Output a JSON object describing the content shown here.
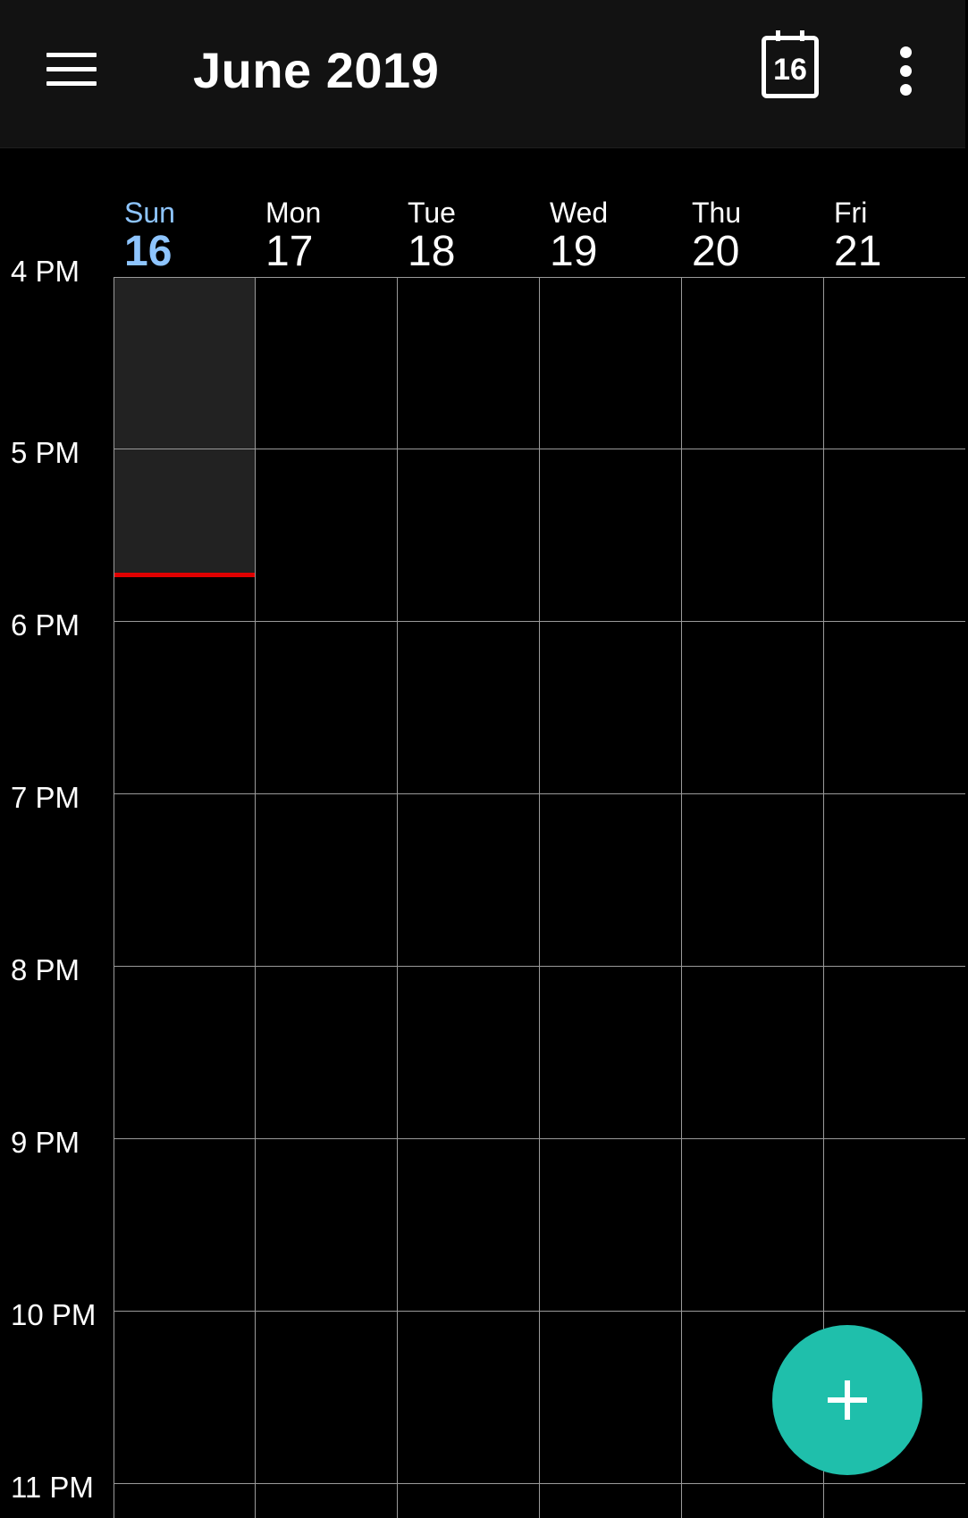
{
  "header": {
    "title": "June 2019",
    "today_icon_number": "16",
    "menu_icon": "hamburger-menu-icon",
    "today_icon": "calendar-today-icon",
    "overflow_icon": "more-vert-icon"
  },
  "days": [
    {
      "name": "Sun",
      "date": "16",
      "is_today": true
    },
    {
      "name": "Mon",
      "date": "17",
      "is_today": false
    },
    {
      "name": "Tue",
      "date": "18",
      "is_today": false
    },
    {
      "name": "Wed",
      "date": "19",
      "is_today": false
    },
    {
      "name": "Thu",
      "date": "20",
      "is_today": false
    },
    {
      "name": "Fri",
      "date": "21",
      "is_today": false
    }
  ],
  "hours": [
    "4 PM",
    "5 PM",
    "6 PM",
    "7 PM",
    "8 PM",
    "9 PM",
    "10 PM",
    "11 PM"
  ],
  "colors": {
    "today_accent": "#8ec5ff",
    "now_indicator": "#e00000",
    "fab": "#1fbfab",
    "past_shading": "#222222",
    "topbar": "#121212"
  },
  "fab": {
    "icon": "plus-icon"
  }
}
